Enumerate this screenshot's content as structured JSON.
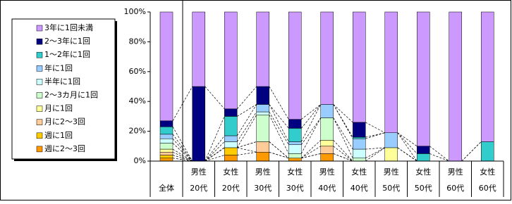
{
  "chart_data": {
    "type": "stacked_bar_100",
    "categories": [
      [
        "全体"
      ],
      [
        "男性",
        "20代"
      ],
      [
        "女性",
        "20代"
      ],
      [
        "男性",
        "30代"
      ],
      [
        "女性",
        "30代"
      ],
      [
        "男性",
        "40代"
      ],
      [
        "女性",
        "40代"
      ],
      [
        "男性",
        "50代"
      ],
      [
        "女性",
        "50代"
      ],
      [
        "男性",
        "60代"
      ],
      [
        "女性",
        "60代"
      ]
    ],
    "series": [
      {
        "name": "週に2～3回",
        "color": "#ff9900",
        "values": [
          2,
          0,
          4,
          6,
          2,
          5,
          0,
          0,
          0,
          0,
          0
        ]
      },
      {
        "name": "週に1回",
        "color": "#ffcc00",
        "values": [
          2,
          0,
          5,
          0,
          0,
          0,
          0,
          0,
          0,
          0,
          0
        ]
      },
      {
        "name": "月に2～3回",
        "color": "#ffcc99",
        "values": [
          2,
          0,
          0,
          7,
          0,
          5,
          0,
          0,
          0,
          0,
          0
        ]
      },
      {
        "name": "月に1回",
        "color": "#ffff99",
        "values": [
          2,
          0,
          0,
          0,
          0,
          4,
          0,
          9,
          0,
          0,
          0
        ]
      },
      {
        "name": "2～3カ月に1回",
        "color": "#ccffcc",
        "values": [
          4,
          0,
          0,
          18,
          3,
          15,
          2,
          0,
          0,
          0,
          0
        ]
      },
      {
        "name": "半年に1回",
        "color": "#ccffff",
        "values": [
          3,
          0,
          4,
          2,
          6,
          0,
          6,
          0,
          0,
          0,
          0
        ]
      },
      {
        "name": "年に1回",
        "color": "#99ccff",
        "values": [
          3,
          0,
          4,
          5,
          2,
          9,
          7,
          10,
          0,
          0,
          0
        ]
      },
      {
        "name": "1～2年に1回",
        "color": "#33cccc",
        "values": [
          5,
          0,
          13,
          0,
          9,
          0,
          1,
          0,
          5,
          0,
          13
        ]
      },
      {
        "name": "2～3年に1回",
        "color": "#000080",
        "values": [
          4,
          50,
          5,
          12,
          6,
          0,
          10,
          0,
          5,
          0,
          0
        ]
      },
      {
        "name": "3年に1回未満",
        "color": "#cc99ff",
        "values": [
          73,
          50,
          65,
          50,
          72,
          62,
          74,
          81,
          90,
          100,
          87
        ]
      }
    ],
    "ylim": [
      0,
      100
    ],
    "yticks": [
      {
        "value": 0,
        "label": "0%"
      },
      {
        "value": 20,
        "label": "20%"
      },
      {
        "value": 40,
        "label": "40%"
      },
      {
        "value": 60,
        "label": "60%"
      },
      {
        "value": 80,
        "label": "80%"
      },
      {
        "value": 100,
        "label": "100%"
      }
    ],
    "legend": "left"
  }
}
